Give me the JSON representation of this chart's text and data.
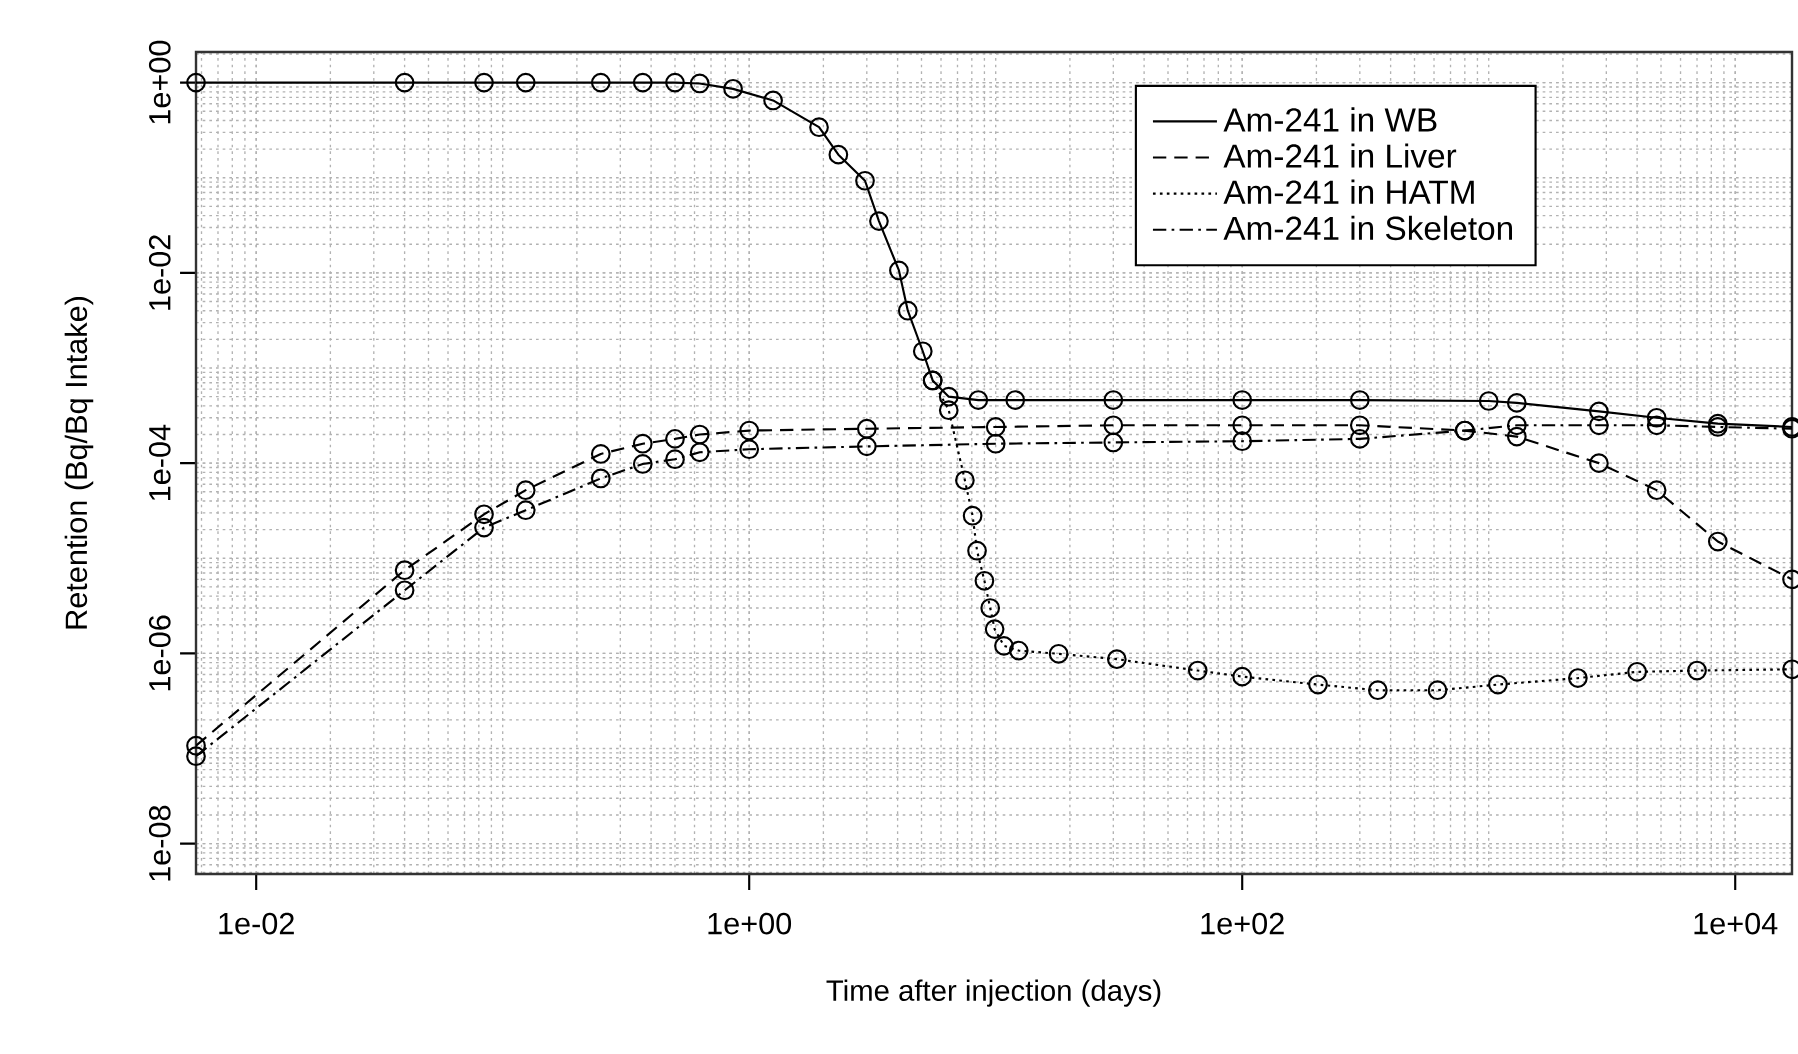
{
  "chart_data": {
    "type": "line",
    "xlabel": "Time after injection (days)",
    "ylabel": "Retention (Bq/Bq Intake)",
    "log": "xy",
    "grid": true,
    "legend": "top right",
    "marker": "circle",
    "xlim": [
      0.0057,
      17000
    ],
    "ylim": [
      4.8e-09,
      2.1
    ],
    "xticks": [
      {
        "value": 0.01,
        "label": "1e-02"
      },
      {
        "value": 1,
        "label": "1e+00"
      },
      {
        "value": 100,
        "label": "1e+02"
      },
      {
        "value": 10000,
        "label": "1e+04"
      }
    ],
    "yticks": [
      {
        "value": 1e-08,
        "label": "1e-08"
      },
      {
        "value": 1e-06,
        "label": "1e-06"
      },
      {
        "value": 0.0001,
        "label": "1e-04"
      },
      {
        "value": 0.01,
        "label": "1e-02"
      },
      {
        "value": 1,
        "label": "1e+00"
      }
    ],
    "series": [
      {
        "name": "Am-241 in WB",
        "color": "#000000",
        "line_style": "solid",
        "x": [
          0.0057,
          0.04,
          0.084,
          0.124,
          0.25,
          0.37,
          0.5,
          0.63,
          0.86,
          1.25,
          1.92,
          2.3,
          2.95,
          3.36,
          4.05,
          4.4,
          5.06,
          5.55,
          6.45,
          8.5,
          12,
          30,
          100,
          300,
          1000,
          1300,
          2800,
          4800,
          8500,
          17000
        ],
        "values": [
          1,
          1,
          1,
          1,
          1,
          1,
          1,
          0.98,
          0.86,
          0.65,
          0.34,
          0.175,
          0.093,
          0.035,
          0.0106,
          0.004,
          0.0015,
          0.00074,
          0.0005,
          0.00046,
          0.00046,
          0.00046,
          0.00046,
          0.00046,
          0.00045,
          0.00043,
          0.00035,
          0.0003,
          0.00026,
          0.00024
        ]
      },
      {
        "name": "Am-241 in Liver",
        "color": "#000000",
        "line_style": "dashed",
        "x": [
          0.0057,
          0.04,
          0.084,
          0.124,
          0.25,
          0.37,
          0.5,
          0.63,
          1,
          3,
          10,
          30,
          100,
          300,
          800,
          1300,
          2800,
          4800,
          8500,
          17000
        ],
        "values": [
          1.07e-07,
          7.5e-06,
          2.9e-05,
          5.2e-05,
          0.000125,
          0.00016,
          0.00018,
          0.0002,
          0.00022,
          0.00023,
          0.00024,
          0.00025,
          0.00025,
          0.00025,
          0.00022,
          0.00019,
          0.0001,
          5.2e-05,
          1.5e-05,
          6e-06
        ]
      },
      {
        "name": "Am-241 in HATM",
        "color": "#000000",
        "line_style": "dotted",
        "x": [
          5.55,
          6.45,
          7.5,
          8.06,
          8.4,
          9.0,
          9.5,
          9.9,
          10.8,
          12.4,
          18,
          31,
          66,
          100,
          203,
          355,
          620,
          1090,
          2300,
          4000,
          7000,
          17000
        ],
        "values": [
          0.00074,
          0.00036,
          6.6e-05,
          2.8e-05,
          1.2e-05,
          5.8e-06,
          3e-06,
          1.8e-06,
          1.2e-06,
          1.07e-06,
          9.9e-07,
          8.7e-07,
          6.6e-07,
          5.7e-07,
          4.7e-07,
          4.1e-07,
          4.1e-07,
          4.7e-07,
          5.5e-07,
          6.4e-07,
          6.6e-07,
          6.8e-07
        ]
      },
      {
        "name": "Am-241 in Skeleton",
        "color": "#000000",
        "line_style": "dashdot",
        "x": [
          0.0057,
          0.04,
          0.084,
          0.124,
          0.25,
          0.37,
          0.5,
          0.63,
          1,
          3,
          10,
          30,
          100,
          300,
          800,
          1300,
          2800,
          4800,
          8500,
          17000
        ],
        "values": [
          8.3e-08,
          4.6e-06,
          2.1e-05,
          3.2e-05,
          6.9e-05,
          9.8e-05,
          0.00011,
          0.00013,
          0.00014,
          0.00015,
          0.00016,
          0.000165,
          0.00017,
          0.00018,
          0.00022,
          0.00025,
          0.00025,
          0.00025,
          0.00024,
          0.00023
        ]
      }
    ]
  }
}
